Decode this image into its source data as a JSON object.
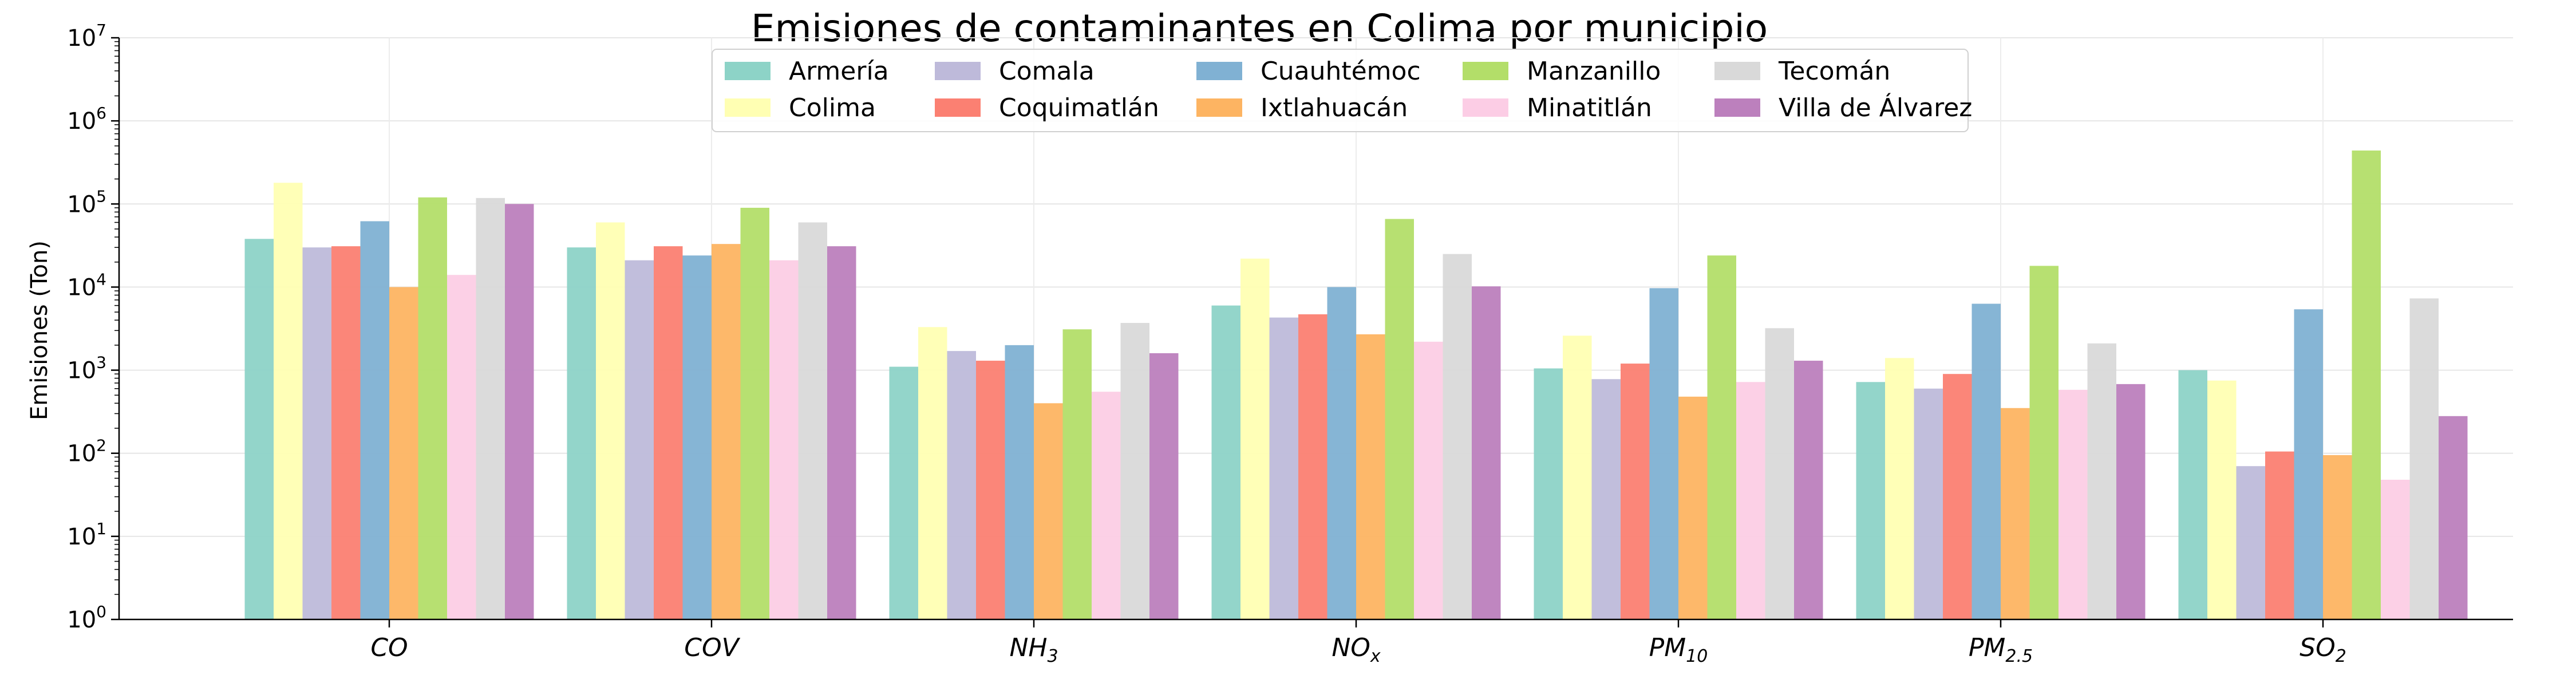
{
  "chart_data": {
    "type": "bar",
    "title": "Emisiones de contaminantes en Colima por municipio",
    "xlabel": "",
    "ylabel": "Emisiones (Ton)",
    "yscale": "log",
    "ylim": [
      1,
      10000000
    ],
    "y_ticks": [
      {
        "value": 1,
        "base": "10",
        "exp": "0"
      },
      {
        "value": 10,
        "base": "10",
        "exp": "1"
      },
      {
        "value": 100,
        "base": "10",
        "exp": "2"
      },
      {
        "value": 1000,
        "base": "10",
        "exp": "3"
      },
      {
        "value": 10000,
        "base": "10",
        "exp": "4"
      },
      {
        "value": 100000,
        "base": "10",
        "exp": "5"
      },
      {
        "value": 1000000,
        "base": "10",
        "exp": "6"
      },
      {
        "value": 10000000,
        "base": "10",
        "exp": "7"
      }
    ],
    "grid": true,
    "legend_position": "top-center",
    "categories": [
      {
        "base": "CO",
        "sub": ""
      },
      {
        "base": "COV",
        "sub": ""
      },
      {
        "base": "NH",
        "sub": "3"
      },
      {
        "base": "NO",
        "sub": "x"
      },
      {
        "base": "PM",
        "sub": "10"
      },
      {
        "base": "PM",
        "sub": "2.5"
      },
      {
        "base": "SO",
        "sub": "2"
      }
    ],
    "series": [
      {
        "name": "Armería",
        "color": "#8dd3c7",
        "values": [
          38000,
          30000,
          1100,
          6000,
          1050,
          720,
          1000
        ]
      },
      {
        "name": "Colima",
        "color": "#ffffb3",
        "values": [
          180000,
          60000,
          3300,
          22000,
          2600,
          1400,
          750
        ]
      },
      {
        "name": "Comala",
        "color": "#bebada",
        "values": [
          30000,
          21000,
          1700,
          4300,
          780,
          600,
          70
        ]
      },
      {
        "name": "Coquimatlán",
        "color": "#fb8072",
        "values": [
          31000,
          31000,
          1300,
          4700,
          1200,
          900,
          105
        ]
      },
      {
        "name": "Cuauhtémoc",
        "color": "#80b1d3",
        "values": [
          62000,
          24000,
          2000,
          10000,
          9700,
          6300,
          5400
        ]
      },
      {
        "name": "Ixtlahuacán",
        "color": "#fdb462",
        "values": [
          10000,
          33000,
          400,
          2700,
          480,
          350,
          95
        ]
      },
      {
        "name": "Manzanillo",
        "color": "#b3de69",
        "values": [
          120000,
          90000,
          3100,
          66000,
          24000,
          18000,
          440000
        ]
      },
      {
        "name": "Minatitlán",
        "color": "#fccde5",
        "values": [
          14000,
          21000,
          550,
          2200,
          720,
          580,
          48
        ]
      },
      {
        "name": "Tecomán",
        "color": "#d9d9d9",
        "values": [
          118000,
          60000,
          3700,
          25000,
          3200,
          2100,
          7300
        ]
      },
      {
        "name": "Villa de Álvarez",
        "color": "#bc80bd",
        "values": [
          100000,
          31000,
          1600,
          10200,
          1300,
          680,
          280
        ]
      }
    ]
  }
}
